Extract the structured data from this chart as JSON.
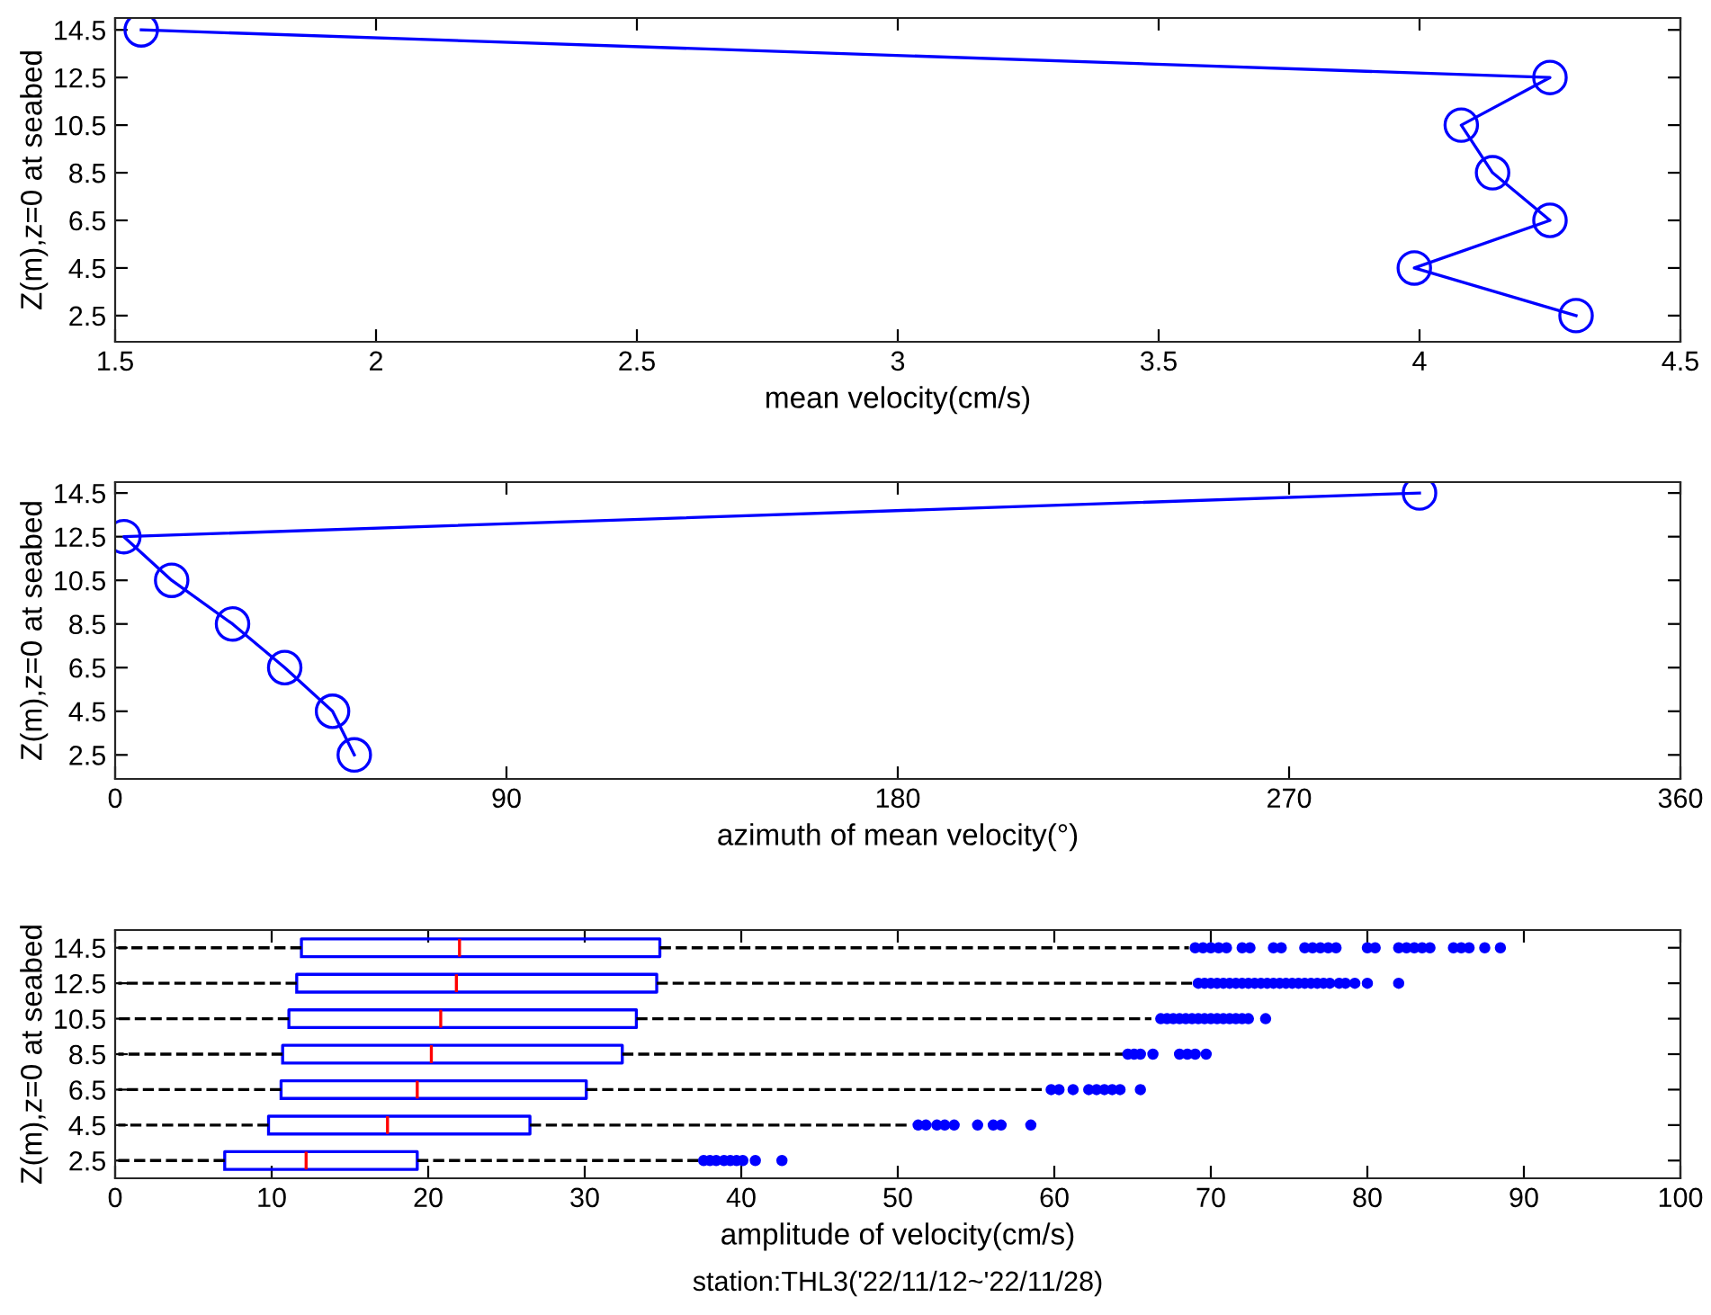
{
  "chart_data": [
    {
      "type": "line",
      "xlabel": "mean velocity(cm/s)",
      "ylabel": "Z(m),z=0 at seabed",
      "marker": "circle",
      "line_style": "solid",
      "grid": false,
      "legend": false,
      "xlim": [
        1.5,
        4.5
      ],
      "xticks": [
        1.5,
        2,
        2.5,
        3,
        3.5,
        4,
        4.5
      ],
      "ylim": [
        1.4,
        15
      ],
      "yticks": [
        2.5,
        4.5,
        6.5,
        8.5,
        10.5,
        12.5,
        14.5
      ],
      "series": [
        {
          "color": "#0000ff",
          "x": [
            1.55,
            4.25,
            4.08,
            4.14,
            4.25,
            3.99,
            4.3
          ],
          "values": [
            14.5,
            12.5,
            10.5,
            8.5,
            6.5,
            4.5,
            2.5
          ]
        }
      ]
    },
    {
      "type": "line",
      "xlabel": "azimuth of mean velocity(°)",
      "ylabel": "Z(m),z=0 at seabed",
      "marker": "circle",
      "line_style": "solid",
      "grid": false,
      "legend": false,
      "xlim": [
        0,
        360
      ],
      "xticks": [
        0,
        90,
        180,
        270,
        360
      ],
      "ylim": [
        1.4,
        15
      ],
      "yticks": [
        2.5,
        4.5,
        6.5,
        8.5,
        10.5,
        12.5,
        14.5
      ],
      "series": [
        {
          "color": "#0000ff",
          "x": [
            300,
            2,
            13,
            27,
            39,
            50,
            55
          ],
          "values": [
            14.5,
            12.5,
            10.5,
            8.5,
            6.5,
            4.5,
            2.5
          ]
        }
      ]
    },
    {
      "type": "box",
      "orientation": "horizontal",
      "xlabel": "amplitude of velocity(cm/s)",
      "ylabel": "Z(m),z=0 at seabed",
      "grid": false,
      "legend": false,
      "annotations": [
        "station:THL3('22/11/12~'22/11/28)"
      ],
      "xlim": [
        0,
        100
      ],
      "xticks": [
        0,
        10,
        20,
        30,
        40,
        50,
        60,
        70,
        80,
        90,
        100
      ],
      "categories": [
        "14.5",
        "12.5",
        "10.5",
        "8.5",
        "6.5",
        "4.5",
        "2.5"
      ],
      "series": [
        {
          "color": "#0000ff",
          "boxes": [
            {
              "low": 0.2,
              "q1": 11.9,
              "median": 22.0,
              "q3": 34.8,
              "high": 68.6,
              "outliers": [
                69,
                69.5,
                70,
                70.5,
                71,
                72,
                72.5,
                74,
                74.5,
                76,
                76.5,
                77,
                77.5,
                78,
                80,
                80.5,
                82,
                82.5,
                83,
                83.5,
                84,
                85.5,
                86,
                86.5,
                87.5,
                88.5
              ]
            },
            {
              "low": 0.2,
              "q1": 11.6,
              "median": 21.8,
              "q3": 34.6,
              "high": 68.8,
              "outliers": [
                69.2,
                69.6,
                70,
                70.4,
                70.8,
                71.2,
                71.6,
                72,
                72.4,
                72.8,
                73.2,
                73.6,
                74,
                74.4,
                74.8,
                75.2,
                75.6,
                76,
                76.4,
                76.8,
                77.2,
                77.6,
                78.2,
                78.6,
                79.2,
                80,
                82
              ]
            },
            {
              "low": 0.2,
              "q1": 11.1,
              "median": 20.8,
              "q3": 33.3,
              "high": 66.2,
              "outliers": [
                66.8,
                67.2,
                67.6,
                68,
                68.4,
                68.8,
                69.2,
                69.6,
                70,
                70.4,
                70.8,
                71.2,
                71.6,
                72,
                72.4,
                73.5
              ]
            },
            {
              "low": 0.2,
              "q1": 10.7,
              "median": 20.2,
              "q3": 32.4,
              "high": 64.4,
              "outliers": [
                64.7,
                65.1,
                65.5,
                66.3,
                68,
                68.5,
                69,
                69.7
              ]
            },
            {
              "low": 0.2,
              "q1": 10.6,
              "median": 19.3,
              "q3": 30.1,
              "high": 59.2,
              "outliers": [
                59.8,
                60.3,
                61.2,
                62.2,
                62.7,
                63.2,
                63.7,
                64.2,
                65.5
              ]
            },
            {
              "low": 0.2,
              "q1": 9.8,
              "median": 17.4,
              "q3": 26.5,
              "high": 50.8,
              "outliers": [
                51.3,
                51.8,
                52.5,
                53,
                53.6,
                55.1,
                56.1,
                56.6,
                58.5
              ]
            },
            {
              "low": 0.2,
              "q1": 7.0,
              "median": 12.2,
              "q3": 19.3,
              "high": 37.3,
              "outliers": [
                37.6,
                38,
                38.4,
                38.9,
                39.3,
                39.7,
                40.1,
                40.9,
                42.6
              ]
            }
          ]
        }
      ]
    }
  ]
}
